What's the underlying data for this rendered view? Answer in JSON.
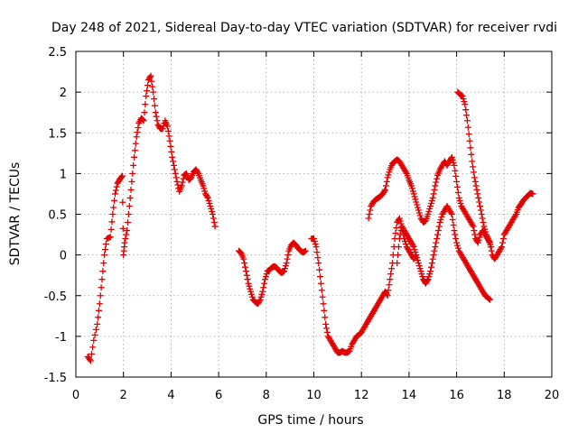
{
  "chart_data": {
    "type": "scatter",
    "title": "Day 248 of 2021, Sidereal Day-to-day VTEC variation (SDTVAR) for receiver rvdi",
    "xlabel": "GPS time / hours",
    "ylabel": "SDTVAR / TECUs",
    "xlim": [
      0,
      20
    ],
    "ylim": [
      -1.5,
      2.5
    ],
    "xticks": [
      0,
      2,
      4,
      6,
      8,
      10,
      12,
      14,
      16,
      18,
      20
    ],
    "yticks": [
      -1.5,
      -1,
      -0.5,
      0,
      0.5,
      1,
      1.5,
      2,
      2.5
    ],
    "xtick_labels": [
      "0",
      "2",
      "4",
      "6",
      "8",
      "10",
      "12",
      "14",
      "16",
      "18",
      "20"
    ],
    "ytick_labels": [
      "-1.5",
      "-1",
      "-0.5",
      "0",
      "0.5",
      "1",
      "1.5",
      "2",
      "2.5"
    ],
    "grid": true,
    "marker": "+",
    "color": "#e00000",
    "series": [
      {
        "name": "segment-1",
        "points": [
          [
            0.5,
            -1.25
          ],
          [
            0.62,
            -1.3
          ],
          [
            0.75,
            -1.05
          ],
          [
            0.9,
            -0.85
          ],
          [
            1.0,
            -0.6
          ],
          [
            1.1,
            -0.3
          ],
          [
            1.2,
            0.0
          ],
          [
            1.3,
            0.2
          ],
          [
            1.45,
            0.22
          ],
          [
            1.55,
            0.5
          ],
          [
            1.65,
            0.75
          ],
          [
            1.75,
            0.88
          ],
          [
            1.85,
            0.93
          ],
          [
            1.95,
            0.97
          ],
          [
            2.0,
            0.0
          ],
          [
            2.05,
            0.15
          ],
          [
            2.15,
            0.3
          ],
          [
            2.25,
            0.6
          ],
          [
            2.35,
            0.9
          ],
          [
            2.45,
            1.2
          ],
          [
            2.55,
            1.45
          ],
          [
            2.65,
            1.62
          ],
          [
            2.75,
            1.68
          ],
          [
            2.85,
            1.65
          ],
          [
            2.95,
            1.95
          ],
          [
            3.05,
            2.15
          ],
          [
            3.15,
            2.2
          ],
          [
            3.25,
            2.0
          ],
          [
            3.35,
            1.75
          ],
          [
            3.45,
            1.6
          ],
          [
            3.55,
            1.55
          ],
          [
            3.65,
            1.55
          ],
          [
            3.75,
            1.65
          ],
          [
            3.85,
            1.58
          ],
          [
            3.95,
            1.4
          ],
          [
            4.05,
            1.2
          ],
          [
            4.15,
            1.05
          ],
          [
            4.25,
            0.9
          ],
          [
            4.35,
            0.78
          ],
          [
            4.45,
            0.85
          ],
          [
            4.55,
            0.98
          ],
          [
            4.65,
            1.0
          ],
          [
            4.75,
            0.92
          ],
          [
            4.85,
            0.95
          ],
          [
            4.95,
            1.02
          ],
          [
            5.05,
            1.05
          ],
          [
            5.15,
            1.0
          ],
          [
            5.25,
            0.92
          ],
          [
            5.35,
            0.85
          ],
          [
            5.45,
            0.75
          ],
          [
            5.55,
            0.7
          ],
          [
            5.65,
            0.6
          ],
          [
            5.75,
            0.5
          ],
          [
            5.85,
            0.35
          ]
        ]
      },
      {
        "name": "segment-2",
        "points": [
          [
            6.85,
            0.05
          ],
          [
            6.95,
            0.02
          ],
          [
            7.05,
            -0.05
          ],
          [
            7.15,
            -0.2
          ],
          [
            7.25,
            -0.35
          ],
          [
            7.35,
            -0.45
          ],
          [
            7.45,
            -0.55
          ],
          [
            7.55,
            -0.58
          ],
          [
            7.65,
            -0.6
          ],
          [
            7.75,
            -0.55
          ],
          [
            7.85,
            -0.45
          ],
          [
            7.95,
            -0.3
          ],
          [
            8.05,
            -0.2
          ],
          [
            8.15,
            -0.18
          ],
          [
            8.25,
            -0.15
          ],
          [
            8.35,
            -0.14
          ],
          [
            8.45,
            -0.16
          ],
          [
            8.55,
            -0.2
          ],
          [
            8.65,
            -0.22
          ],
          [
            8.75,
            -0.2
          ],
          [
            8.85,
            -0.1
          ],
          [
            8.95,
            0.05
          ],
          [
            9.05,
            0.12
          ],
          [
            9.15,
            0.15
          ],
          [
            9.25,
            0.12
          ],
          [
            9.35,
            0.08
          ],
          [
            9.45,
            0.05
          ],
          [
            9.55,
            0.03
          ],
          [
            9.65,
            0.05
          ]
        ]
      },
      {
        "name": "segment-3",
        "points": [
          [
            9.9,
            0.2
          ],
          [
            10.0,
            0.2
          ],
          [
            10.1,
            0.1
          ],
          [
            10.2,
            -0.1
          ],
          [
            10.3,
            -0.35
          ],
          [
            10.4,
            -0.6
          ],
          [
            10.5,
            -0.85
          ],
          [
            10.6,
            -1.0
          ],
          [
            10.7,
            -1.05
          ],
          [
            10.8,
            -1.1
          ],
          [
            10.9,
            -1.15
          ],
          [
            11.0,
            -1.2
          ],
          [
            11.1,
            -1.2
          ],
          [
            11.2,
            -1.18
          ],
          [
            11.3,
            -1.2
          ],
          [
            11.4,
            -1.2
          ],
          [
            11.5,
            -1.18
          ],
          [
            11.6,
            -1.1
          ],
          [
            11.7,
            -1.05
          ],
          [
            11.8,
            -1.0
          ],
          [
            11.9,
            -0.98
          ],
          [
            12.0,
            -0.95
          ],
          [
            12.1,
            -0.9
          ],
          [
            12.2,
            -0.85
          ],
          [
            12.3,
            -0.8
          ],
          [
            12.4,
            -0.75
          ],
          [
            12.5,
            -0.7
          ],
          [
            12.6,
            -0.65
          ],
          [
            12.7,
            -0.6
          ],
          [
            12.8,
            -0.55
          ],
          [
            12.9,
            -0.5
          ],
          [
            13.0,
            -0.45
          ],
          [
            13.1,
            -0.5
          ],
          [
            13.2,
            -0.3
          ],
          [
            13.3,
            -0.1
          ],
          [
            13.4,
            0.2
          ],
          [
            13.5,
            0.4
          ],
          [
            13.6,
            0.45
          ],
          [
            13.7,
            0.35
          ],
          [
            13.8,
            0.2
          ],
          [
            13.9,
            0.1
          ],
          [
            14.0,
            0.05
          ],
          [
            14.1,
            0.0
          ],
          [
            14.2,
            -0.05
          ],
          [
            14.3,
            0.0
          ]
        ]
      },
      {
        "name": "segment-4",
        "points": [
          [
            12.3,
            0.45
          ],
          [
            12.4,
            0.6
          ],
          [
            12.5,
            0.65
          ],
          [
            12.6,
            0.68
          ],
          [
            12.7,
            0.7
          ],
          [
            12.8,
            0.72
          ],
          [
            12.9,
            0.75
          ],
          [
            13.0,
            0.8
          ],
          [
            13.1,
            0.95
          ],
          [
            13.2,
            1.05
          ],
          [
            13.3,
            1.12
          ],
          [
            13.4,
            1.15
          ],
          [
            13.5,
            1.17
          ],
          [
            13.6,
            1.15
          ],
          [
            13.7,
            1.1
          ],
          [
            13.8,
            1.05
          ],
          [
            13.9,
            1.0
          ],
          [
            14.0,
            0.92
          ],
          [
            14.1,
            0.85
          ],
          [
            14.2,
            0.75
          ],
          [
            14.3,
            0.65
          ],
          [
            14.4,
            0.55
          ],
          [
            14.5,
            0.45
          ],
          [
            14.6,
            0.4
          ],
          [
            14.7,
            0.42
          ],
          [
            14.8,
            0.5
          ],
          [
            14.9,
            0.6
          ],
          [
            15.0,
            0.7
          ],
          [
            15.1,
            0.85
          ],
          [
            15.2,
            0.98
          ],
          [
            15.3,
            1.05
          ],
          [
            15.4,
            1.1
          ],
          [
            15.5,
            1.15
          ],
          [
            15.6,
            1.1
          ],
          [
            15.7,
            1.15
          ],
          [
            15.8,
            1.2
          ],
          [
            15.9,
            1.1
          ],
          [
            16.0,
            0.9
          ],
          [
            16.1,
            0.7
          ],
          [
            16.2,
            0.6
          ],
          [
            16.3,
            0.55
          ],
          [
            16.4,
            0.5
          ],
          [
            16.5,
            0.45
          ],
          [
            16.6,
            0.4
          ],
          [
            16.7,
            0.35
          ],
          [
            16.8,
            0.2
          ],
          [
            16.9,
            0.15
          ],
          [
            17.0,
            0.25
          ],
          [
            17.1,
            0.3
          ],
          [
            17.2,
            0.25
          ],
          [
            17.3,
            0.2
          ],
          [
            17.4,
            0.15
          ],
          [
            17.5,
            0.0
          ],
          [
            17.6,
            -0.05
          ],
          [
            17.7,
            0.0
          ],
          [
            17.8,
            0.05
          ]
        ]
      },
      {
        "name": "segment-5",
        "points": [
          [
            13.5,
            -0.1
          ],
          [
            13.6,
            0.2
          ],
          [
            13.7,
            0.35
          ],
          [
            13.8,
            0.3
          ],
          [
            13.9,
            0.25
          ],
          [
            14.0,
            0.2
          ],
          [
            14.1,
            0.15
          ],
          [
            14.2,
            0.1
          ],
          [
            14.3,
            0.0
          ],
          [
            14.4,
            -0.1
          ],
          [
            14.5,
            -0.2
          ],
          [
            14.6,
            -0.3
          ],
          [
            14.7,
            -0.35
          ],
          [
            14.8,
            -0.3
          ],
          [
            14.9,
            -0.2
          ],
          [
            15.0,
            -0.05
          ],
          [
            15.1,
            0.1
          ],
          [
            15.2,
            0.25
          ],
          [
            15.3,
            0.4
          ],
          [
            15.4,
            0.5
          ],
          [
            15.5,
            0.55
          ],
          [
            15.6,
            0.6
          ],
          [
            15.7,
            0.55
          ],
          [
            15.8,
            0.5
          ],
          [
            15.9,
            0.3
          ],
          [
            16.0,
            0.15
          ],
          [
            16.1,
            0.05
          ],
          [
            16.2,
            0.0
          ],
          [
            16.3,
            -0.05
          ],
          [
            16.4,
            -0.1
          ],
          [
            16.5,
            -0.15
          ],
          [
            16.6,
            -0.2
          ],
          [
            16.7,
            -0.25
          ],
          [
            16.8,
            -0.3
          ],
          [
            16.9,
            -0.35
          ],
          [
            17.0,
            -0.4
          ],
          [
            17.1,
            -0.45
          ],
          [
            17.2,
            -0.5
          ],
          [
            17.3,
            -0.52
          ],
          [
            17.4,
            -0.55
          ]
        ]
      },
      {
        "name": "segment-6",
        "points": [
          [
            16.05,
            2.0
          ],
          [
            16.15,
            1.97
          ],
          [
            16.25,
            1.95
          ],
          [
            16.35,
            1.85
          ],
          [
            16.45,
            1.65
          ],
          [
            16.55,
            1.4
          ],
          [
            16.65,
            1.15
          ],
          [
            16.75,
            0.95
          ],
          [
            16.85,
            0.8
          ],
          [
            16.95,
            0.65
          ],
          [
            17.05,
            0.5
          ],
          [
            17.15,
            0.35
          ],
          [
            17.25,
            0.25
          ],
          [
            17.35,
            0.18
          ],
          [
            17.45,
            0.1
          ]
        ]
      },
      {
        "name": "segment-7",
        "points": [
          [
            17.8,
            0.05
          ],
          [
            17.9,
            0.1
          ],
          [
            18.0,
            0.25
          ],
          [
            18.1,
            0.3
          ],
          [
            18.2,
            0.35
          ],
          [
            18.3,
            0.4
          ],
          [
            18.4,
            0.45
          ],
          [
            18.5,
            0.5
          ],
          [
            18.6,
            0.58
          ],
          [
            18.7,
            0.62
          ],
          [
            18.8,
            0.67
          ],
          [
            18.9,
            0.7
          ],
          [
            19.0,
            0.73
          ],
          [
            19.1,
            0.76
          ],
          [
            19.2,
            0.75
          ]
        ]
      }
    ]
  }
}
